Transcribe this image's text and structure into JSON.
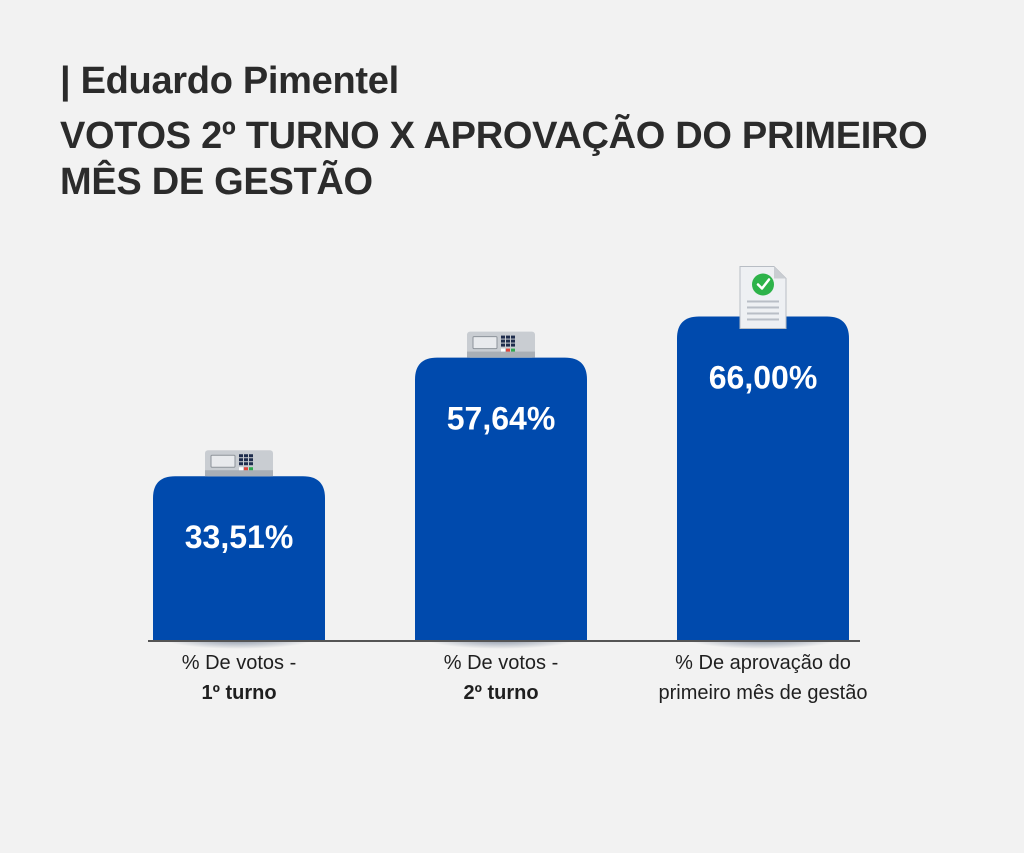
{
  "header": {
    "subtitle": "| Eduardo Pimentel",
    "title": "VOTOS 2º TURNO X APROVAÇÃO DO PRIMEIRO MÊS DE GESTÃO"
  },
  "colors": {
    "bar": "#004aad",
    "bar_shadow": "#002b6b",
    "axis": "#555555",
    "value_text": "#ffffff",
    "background": "#f2f2f2"
  },
  "chart_data": {
    "type": "bar",
    "categories": [
      "% De votos - 1º turno",
      "% De votos - 2º turno",
      "% De aprovação do primeiro mês de gestão"
    ],
    "category_lines": [
      [
        "% De votos -",
        "1º turno"
      ],
      [
        "% De votos -",
        "2º turno"
      ],
      [
        "% De aprovação do",
        "primeiro mês de gestão"
      ]
    ],
    "values": [
      33.51,
      57.64,
      66.0
    ],
    "value_labels": [
      "33,51%",
      "57,64%",
      "66,00%"
    ],
    "icons": [
      "voting-machine-icon",
      "voting-machine-icon",
      "approved-document-icon"
    ],
    "ylim": [
      0,
      100
    ],
    "grid": false,
    "legend": "none"
  }
}
